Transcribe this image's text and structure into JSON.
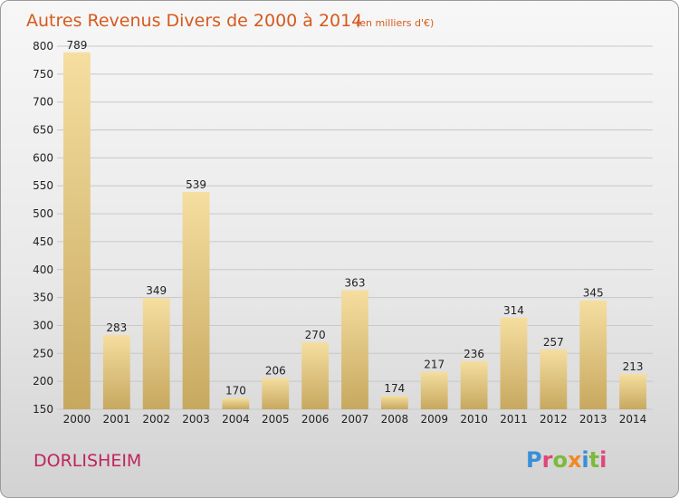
{
  "chart_data": {
    "type": "bar",
    "title": "Autres Revenus Divers de 2000 à 2014",
    "subtitle": "(en milliers d'€)",
    "categories": [
      "2000",
      "2001",
      "2002",
      "2003",
      "2004",
      "2005",
      "2006",
      "2007",
      "2008",
      "2009",
      "2010",
      "2011",
      "2012",
      "2013",
      "2014"
    ],
    "values": [
      789,
      283,
      349,
      539,
      170,
      206,
      270,
      363,
      174,
      217,
      236,
      314,
      257,
      345,
      213
    ],
    "ylim": [
      150,
      800
    ],
    "yticks": [
      150,
      200,
      250,
      300,
      350,
      400,
      450,
      500,
      550,
      600,
      650,
      700,
      750,
      800
    ],
    "grid": true,
    "colors": {
      "bar_light": "#f5dea0",
      "bar_dark": "#c7a85f",
      "grid": "#c8c8c8"
    }
  },
  "footer": {
    "place_name": "DORLISHEIM",
    "logo_letters": [
      {
        "ch": "P",
        "color": "#3a8ed8"
      },
      {
        "ch": "r",
        "color": "#e0467a"
      },
      {
        "ch": "o",
        "color": "#7cba3a"
      },
      {
        "ch": "x",
        "color": "#f08a24"
      },
      {
        "ch": "i",
        "color": "#3a8ed8"
      },
      {
        "ch": "t",
        "color": "#7cba3a"
      },
      {
        "ch": "i",
        "color": "#e0467a"
      }
    ]
  }
}
